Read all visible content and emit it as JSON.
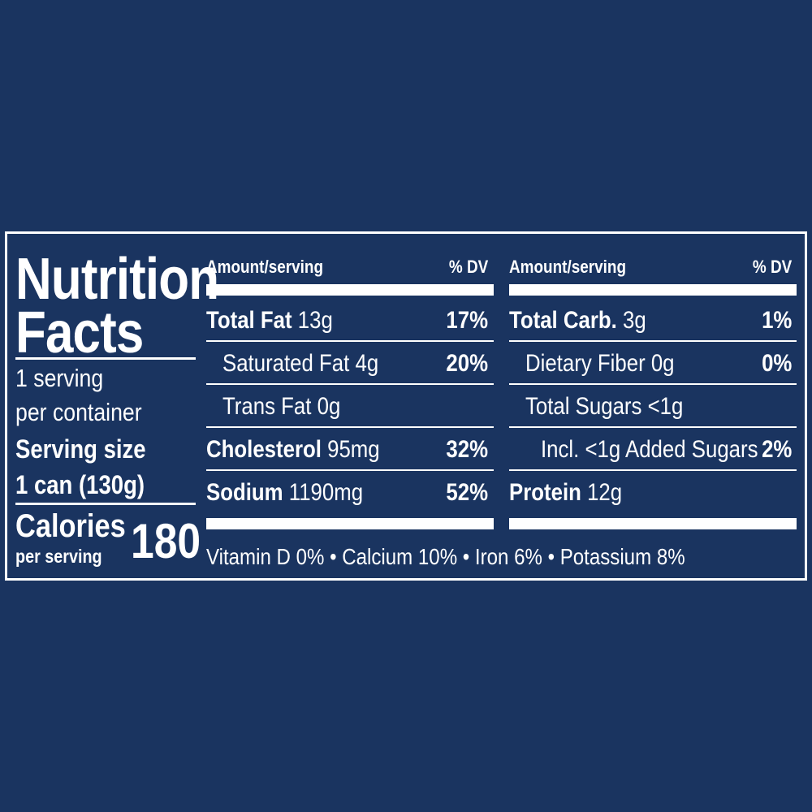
{
  "title": {
    "line1": "Nutrition",
    "line2": "Facts"
  },
  "servings": {
    "line1": "1 serving",
    "line2": "per container",
    "size_label": "Serving size",
    "size_value": "1 can (130g)"
  },
  "calories": {
    "label": "Calories",
    "sub": "per serving",
    "value": "180"
  },
  "left_table": {
    "header_amount": "Amount/serving",
    "header_dv": "% DV",
    "rows": [
      {
        "name": "Total Fat",
        "amount": "13g",
        "dv": "17%"
      },
      {
        "name": "Saturated Fat 4g",
        "amount": "",
        "dv": "20%"
      },
      {
        "name": "Trans Fat 0g",
        "amount": "",
        "dv": ""
      },
      {
        "name": "Cholesterol",
        "amount": "95mg",
        "dv": "32%"
      },
      {
        "name": "Sodium",
        "amount": "1190mg",
        "dv": "52%"
      }
    ]
  },
  "right_table": {
    "header_amount": "Amount/serving",
    "header_dv": "% DV",
    "rows": [
      {
        "name": "Total Carb.",
        "amount": "3g",
        "dv": "1%"
      },
      {
        "name": "Dietary Fiber 0g",
        "amount": "",
        "dv": "0%"
      },
      {
        "name": "Total Sugars <1g",
        "amount": "",
        "dv": ""
      },
      {
        "name": "Incl. <1g Added Sugars",
        "amount": "",
        "dv": "2%"
      },
      {
        "name": "Protein",
        "amount": "12g",
        "dv": ""
      }
    ]
  },
  "footer": "Vitamin D 0% • Calcium 10% • Iron 6% • Potassium 8%",
  "colors": {
    "background": "#1a3460",
    "foreground": "#ffffff"
  }
}
